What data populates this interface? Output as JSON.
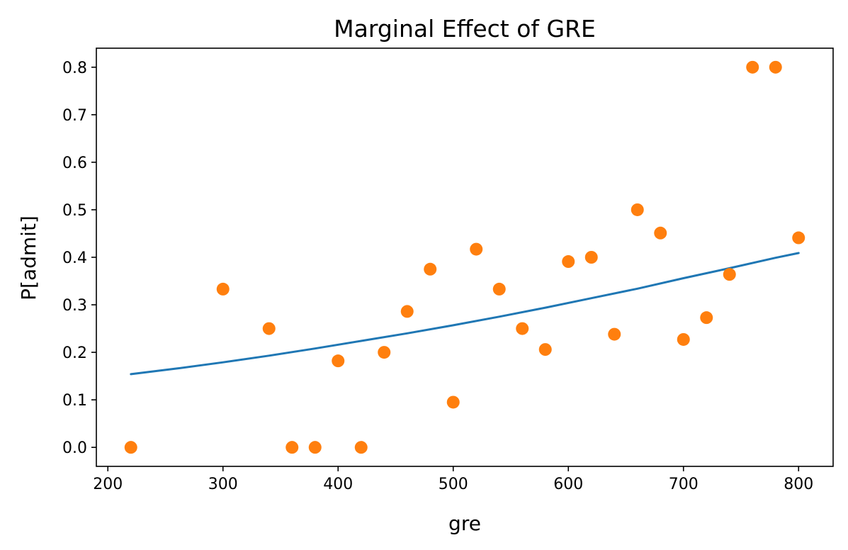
{
  "chart_data": {
    "type": "scatter",
    "title": "Marginal Effect of GRE",
    "xlabel": "gre",
    "ylabel": "P[admit]",
    "xlim": [
      190,
      830
    ],
    "ylim": [
      -0.04,
      0.84
    ],
    "x_ticks": [
      200,
      300,
      400,
      500,
      600,
      700,
      800
    ],
    "y_ticks": [
      0.0,
      0.1,
      0.2,
      0.3,
      0.4,
      0.5,
      0.6,
      0.7,
      0.8
    ],
    "x_tick_labels": [
      "200",
      "300",
      "400",
      "500",
      "600",
      "700",
      "800"
    ],
    "y_tick_labels": [
      "0.0",
      "0.1",
      "0.2",
      "0.3",
      "0.4",
      "0.5",
      "0.6",
      "0.7",
      "0.8"
    ],
    "grid": false,
    "colors": {
      "line": "#1f77b4",
      "points": "#ff7f0e"
    },
    "series": [
      {
        "kind": "line",
        "x": [
          220,
          260,
          300,
          340,
          380,
          420,
          460,
          500,
          540,
          580,
          620,
          660,
          700,
          740,
          780,
          800
        ],
        "y": [
          0.154,
          0.166,
          0.179,
          0.193,
          0.208,
          0.224,
          0.24,
          0.257,
          0.275,
          0.294,
          0.314,
          0.334,
          0.356,
          0.377,
          0.399,
          0.409
        ]
      },
      {
        "kind": "scatter",
        "x": [
          220,
          300,
          340,
          360,
          380,
          400,
          420,
          440,
          460,
          480,
          500,
          520,
          540,
          560,
          580,
          600,
          620,
          640,
          660,
          680,
          700,
          720,
          740,
          760,
          780,
          800
        ],
        "y": [
          0.0,
          0.333,
          0.25,
          0.0,
          0.0,
          0.182,
          0.0,
          0.2,
          0.286,
          0.375,
          0.095,
          0.417,
          0.333,
          0.25,
          0.206,
          0.391,
          0.4,
          0.238,
          0.5,
          0.451,
          0.227,
          0.273,
          0.364,
          0.8,
          0.8,
          0.441
        ]
      }
    ]
  }
}
